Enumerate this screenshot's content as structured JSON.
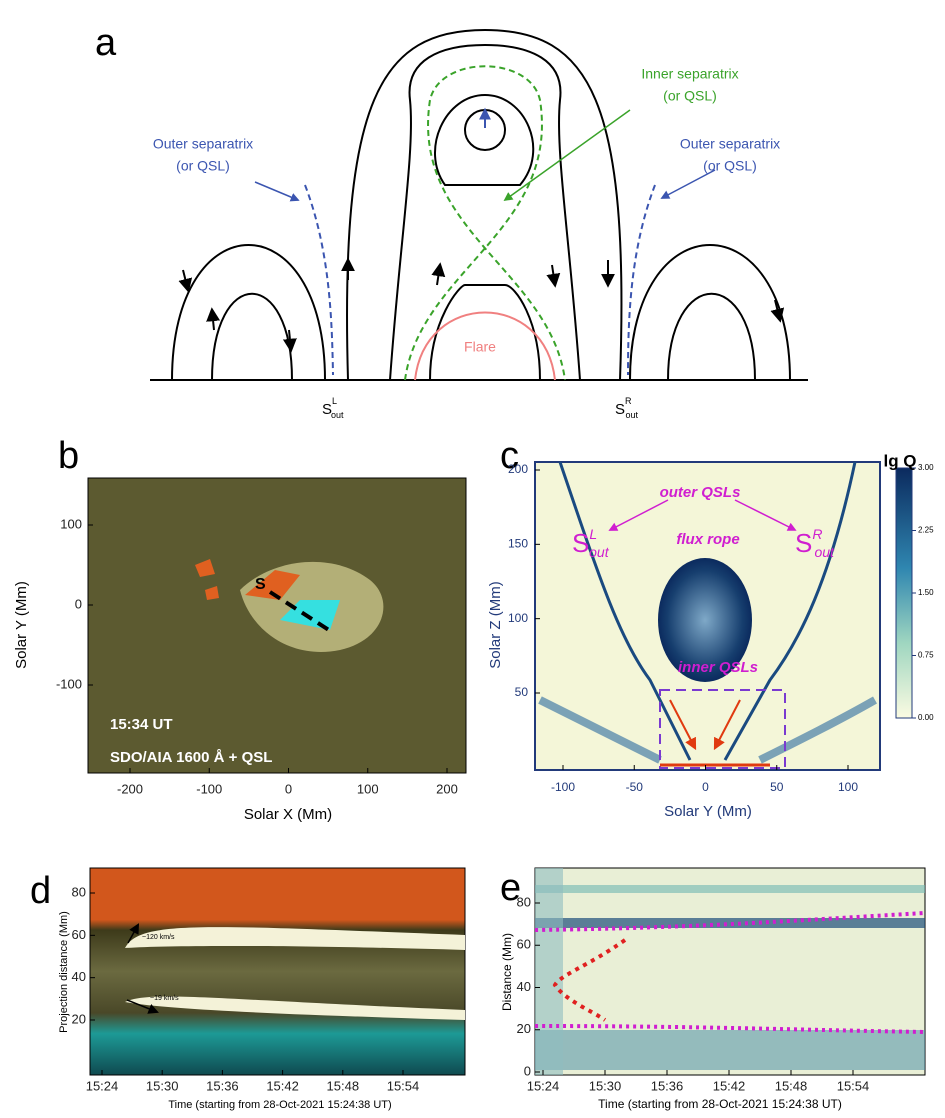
{
  "panel_a": {
    "label": "a",
    "inner_separatrix": [
      "Inner separatrix",
      "(or QSL)"
    ],
    "outer_left": [
      "Outer separatrix",
      "(or QSL)"
    ],
    "outer_right": [
      "Outer separatrix",
      "(or QSL)"
    ],
    "flare": "Flare",
    "s_left": {
      "main": "S",
      "sup": "L",
      "sub": "out"
    },
    "s_right": {
      "main": "S",
      "sup": "R",
      "sub": "out"
    }
  },
  "panel_b": {
    "label": "b",
    "time": "15:34 UT",
    "instrument": "SDO/AIA 1600 Å + QSL",
    "marker": "S",
    "xlabel": "Solar X (Mm)",
    "ylabel": "Solar Y (Mm)",
    "xticks": [
      -200,
      -100,
      0,
      100,
      200
    ],
    "yticks": [
      100,
      0,
      -100
    ]
  },
  "panel_c": {
    "label": "c",
    "xlabel": "Solar Y (Mm)",
    "ylabel": "Solar Z (Mm)",
    "xticks": [
      -100,
      -50,
      0,
      50,
      100
    ],
    "yticks": [
      200,
      150,
      100,
      50
    ],
    "outer_qsls": "outer QSLs",
    "flux_rope": "flux rope",
    "inner_qsls": "inner QSLs",
    "s_left": {
      "main": "S",
      "sup": "L",
      "sub": "out"
    },
    "s_right": {
      "main": "S",
      "sup": "R",
      "sub": "out"
    },
    "colorbar_title": "lg Q",
    "colorbar_ticks": [
      "3.00",
      "2.25",
      "1.50",
      "0.75",
      "0.00"
    ]
  },
  "panel_d": {
    "label": "d",
    "xlabel": "Time (starting from 28-Oct-2021 15:24:38 UT)",
    "ylabel": "Projection distance (Mm)",
    "xticks": [
      "15:24",
      "15:30",
      "15:36",
      "15:42",
      "15:48",
      "15:54"
    ],
    "yticks": [
      80,
      60,
      40,
      20
    ],
    "speed_1": "~120 km/s",
    "speed_2": "~19 km/s"
  },
  "panel_e": {
    "label": "e",
    "xlabel": "Time (starting from 28-Oct-2021 15:24:38 UT)",
    "ylabel": "Distance (Mm)",
    "xticks": [
      "15:24",
      "15:30",
      "15:36",
      "15:42",
      "15:48",
      "15:54"
    ],
    "yticks": [
      80,
      60,
      40,
      20,
      0
    ]
  }
}
